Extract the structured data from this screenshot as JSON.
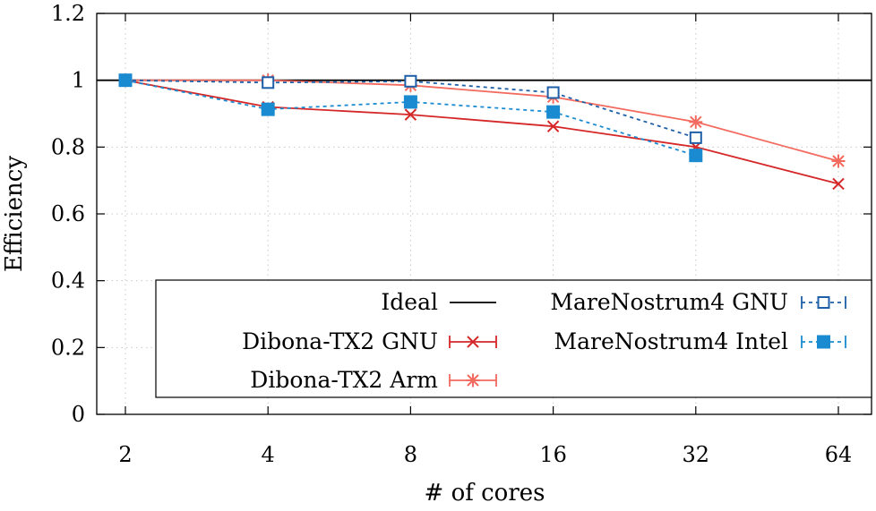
{
  "chart_data": {
    "type": "line",
    "title": "",
    "xlabel": "# of cores",
    "ylabel": "Efficiency",
    "categories": [
      "2",
      "4",
      "8",
      "16",
      "32",
      "64"
    ],
    "ylim": [
      0,
      1.2
    ],
    "yticks": [
      "0",
      "0.2",
      "0.4",
      "0.6",
      "0.8",
      "1",
      "1.2"
    ],
    "ytick_values": [
      0,
      0.2,
      0.4,
      0.6,
      0.8,
      1.0,
      1.2
    ],
    "grid": true,
    "legend_position": "bottom-right",
    "series": [
      {
        "name": "Ideal",
        "values": [
          1,
          1,
          1,
          1,
          1,
          1
        ],
        "color": "#000000",
        "marker": "none",
        "dash": "solid"
      },
      {
        "name": "Dibona-TX2 GNU",
        "values": [
          1.0,
          0.92,
          0.897,
          0.862,
          0.8,
          0.69
        ],
        "color": "#d62728",
        "marker": "x",
        "dash": "solid"
      },
      {
        "name": "Dibona-TX2 Arm",
        "values": [
          1.0,
          1.0,
          0.985,
          0.95,
          0.875,
          0.758
        ],
        "color": "#f36a5f",
        "marker": "star",
        "dash": "solid"
      },
      {
        "name": "MareNostrum4 GNU",
        "values": [
          1.0,
          0.993,
          0.997,
          0.963,
          0.828,
          null
        ],
        "color": "#1f5fa8",
        "marker": "square-open",
        "dash": "dashed"
      },
      {
        "name": "MareNostrum4 Intel",
        "values": [
          1.0,
          0.913,
          0.935,
          0.905,
          0.775,
          null
        ],
        "color": "#1a8bd0",
        "marker": "square-filled",
        "dash": "dashed"
      }
    ]
  }
}
